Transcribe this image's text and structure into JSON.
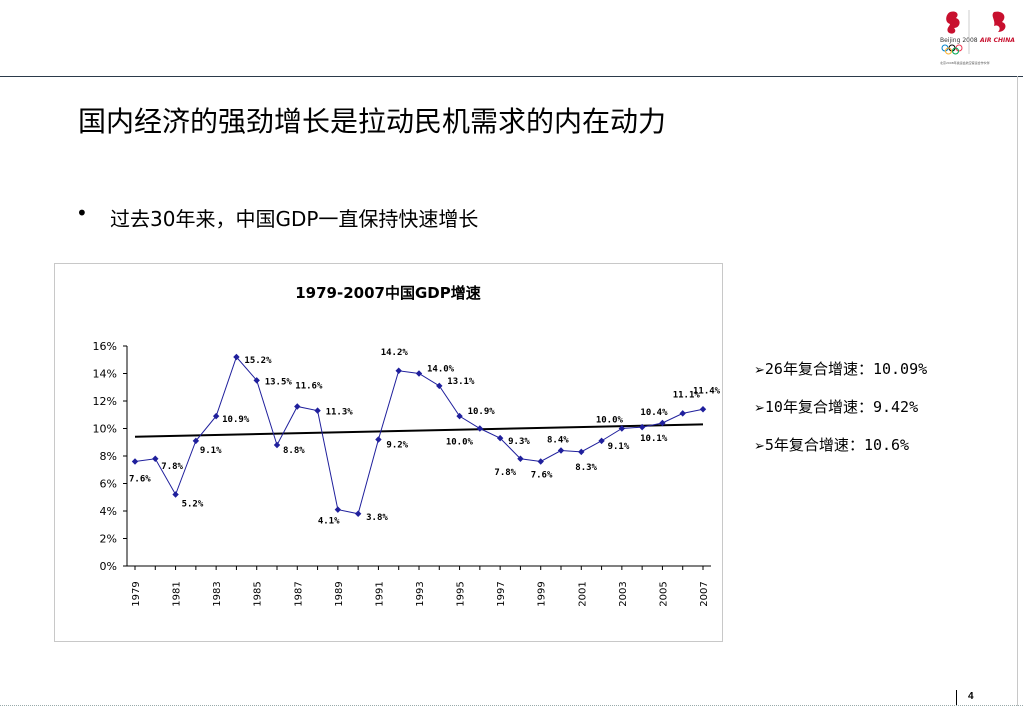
{
  "header": {
    "logo_beijing_text": "Beijing 2008",
    "logo_airchina_text": "AIR CHINA",
    "logo_caption": "北京2008年奥运会航空客运合作伙伴"
  },
  "slide": {
    "title": "国内经济的强劲增长是拉动民机需求的内在动力",
    "bullet_symbol": "•",
    "bullet_text": "过去30年来，中国GDP一直保持快速增长",
    "page_number": "4"
  },
  "side_notes": {
    "arrow": "➢",
    "items": [
      "26年复合增速：10.09%",
      "10年复合增速：9.42%",
      "5年复合增速：10.6%"
    ]
  },
  "colors": {
    "series": "#1f1f9c",
    "trend": "#000000",
    "header_line": "#2b3a4a",
    "logo_red": "#c8102e"
  },
  "chart_data": {
    "type": "line",
    "title": "1979-2007中国GDP增速",
    "xlabel": "",
    "ylabel": "",
    "ylim": [
      0,
      16
    ],
    "y_ticks": [
      "0%",
      "2%",
      "4%",
      "6%",
      "8%",
      "10%",
      "12%",
      "14%",
      "16%"
    ],
    "x_tick_labels": [
      "1979",
      "1981",
      "1983",
      "1985",
      "1987",
      "1989",
      "1991",
      "1993",
      "1995",
      "1997",
      "1999",
      "2001",
      "2003",
      "2005",
      "2007"
    ],
    "grid": false,
    "legend": "none",
    "x": [
      1979,
      1980,
      1981,
      1982,
      1983,
      1984,
      1985,
      1986,
      1987,
      1988,
      1989,
      1990,
      1991,
      1992,
      1993,
      1994,
      1995,
      1996,
      1997,
      1998,
      1999,
      2000,
      2001,
      2002,
      2003,
      2004,
      2005,
      2006,
      2007
    ],
    "series": [
      {
        "values": [
          7.6,
          7.8,
          5.2,
          9.1,
          10.9,
          15.2,
          13.5,
          8.8,
          11.6,
          11.3,
          4.1,
          3.8,
          9.2,
          14.2,
          14.0,
          13.1,
          10.9,
          10.0,
          9.3,
          7.8,
          7.6,
          8.4,
          8.3,
          9.1,
          10.0,
          10.1,
          10.4,
          11.1,
          11.4
        ]
      }
    ],
    "trendline": {
      "x": [
        1979,
        2007
      ],
      "y": [
        9.4,
        10.3
      ]
    },
    "data_labels": [
      {
        "x": 1979,
        "text": "7.6%"
      },
      {
        "x": 1980,
        "text": "7.8%"
      },
      {
        "x": 1981,
        "text": "5.2%"
      },
      {
        "x": 1982,
        "text": "9.1%"
      },
      {
        "x": 1983,
        "text": "10.9%"
      },
      {
        "x": 1984,
        "text": "15.2%"
      },
      {
        "x": 1985,
        "text": "13.5%"
      },
      {
        "x": 1986,
        "text": "8.8%"
      },
      {
        "x": 1987,
        "text": "11.6%"
      },
      {
        "x": 1988,
        "text": "11.3%"
      },
      {
        "x": 1989,
        "text": "4.1%"
      },
      {
        "x": 1990,
        "text": "3.8%"
      },
      {
        "x": 1991,
        "text": "9.2%"
      },
      {
        "x": 1992,
        "text": "14.2%"
      },
      {
        "x": 1993,
        "text": "14.0%"
      },
      {
        "x": 1994,
        "text": "13.1%"
      },
      {
        "x": 1995,
        "text": "10.9%"
      },
      {
        "x": 1996,
        "text": "10.0%"
      },
      {
        "x": 1997,
        "text": "9.3%"
      },
      {
        "x": 1998,
        "text": "7.8%"
      },
      {
        "x": 1999,
        "text": "7.6%"
      },
      {
        "x": 2000,
        "text": "8.4%"
      },
      {
        "x": 2001,
        "text": "8.3%"
      },
      {
        "x": 2002,
        "text": "9.1%"
      },
      {
        "x": 2003,
        "text": "10.0%"
      },
      {
        "x": 2004,
        "text": "10.1%"
      },
      {
        "x": 2005,
        "text": "10.4%"
      },
      {
        "x": 2006,
        "text": "11.1%"
      },
      {
        "x": 2007,
        "text": "11.4%"
      }
    ]
  }
}
